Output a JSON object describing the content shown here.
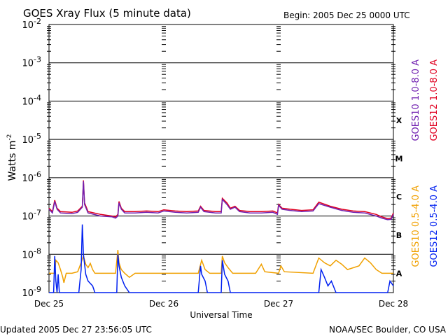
{
  "header": {
    "title": "GOES Xray Flux (5 minute data)",
    "begin": "Begin:  2005 Dec 25 0000 UTC"
  },
  "footer": {
    "updated": "Updated 2005 Dec 27 23:56:05 UTC",
    "source": "NOAA/SEC Boulder, CO USA"
  },
  "chart_data": {
    "type": "line",
    "title": "GOES Xray Flux (5 minute data)",
    "xlabel": "Universal Time",
    "ylabel": "Watts m",
    "ylabel_sup": "-2",
    "yscale": "log",
    "ylim": [
      1e-09,
      0.01
    ],
    "xlim": [
      "Dec 25",
      "Dec 28"
    ],
    "grid": true,
    "yticks": [
      {
        "base": "10",
        "exp": "-2"
      },
      {
        "base": "10",
        "exp": "-3"
      },
      {
        "base": "10",
        "exp": "-4"
      },
      {
        "base": "10",
        "exp": "-5"
      },
      {
        "base": "10",
        "exp": "-6"
      },
      {
        "base": "10",
        "exp": "-7"
      },
      {
        "base": "10",
        "exp": "-8"
      },
      {
        "base": "10",
        "exp": "-9"
      }
    ],
    "xticks": [
      "Dec 25",
      "Dec 26",
      "Dec 27",
      "Dec 28"
    ],
    "flare_classes": [
      "X",
      "M",
      "C",
      "B",
      "A"
    ],
    "series": [
      {
        "name": "GOES12 1.0-8.0 A",
        "color": "#e00020",
        "points": [
          [
            0,
            1.6e-07
          ],
          [
            0.03,
            1.3e-07
          ],
          [
            0.05,
            2.6e-07
          ],
          [
            0.07,
            1.6e-07
          ],
          [
            0.1,
            1.3e-07
          ],
          [
            0.2,
            1.25e-07
          ],
          [
            0.25,
            1.35e-07
          ],
          [
            0.29,
            1.8e-07
          ],
          [
            0.3,
            8.5e-07
          ],
          [
            0.31,
            2.2e-07
          ],
          [
            0.34,
            1.3e-07
          ],
          [
            0.45,
            1.1e-07
          ],
          [
            0.55,
            1e-07
          ],
          [
            0.58,
            9.5e-08
          ],
          [
            0.6,
            1.1e-07
          ],
          [
            0.61,
            2.4e-07
          ],
          [
            0.63,
            1.6e-07
          ],
          [
            0.66,
            1.3e-07
          ],
          [
            0.75,
            1.3e-07
          ],
          [
            0.85,
            1.35e-07
          ],
          [
            0.95,
            1.3e-07
          ],
          [
            1.0,
            1.45e-07
          ],
          [
            1.1,
            1.35e-07
          ],
          [
            1.2,
            1.3e-07
          ],
          [
            1.3,
            1.35e-07
          ],
          [
            1.32,
            1.8e-07
          ],
          [
            1.35,
            1.4e-07
          ],
          [
            1.45,
            1.3e-07
          ],
          [
            1.5,
            1.3e-07
          ],
          [
            1.51,
            2.9e-07
          ],
          [
            1.55,
            2.2e-07
          ],
          [
            1.58,
            1.6e-07
          ],
          [
            1.62,
            1.8e-07
          ],
          [
            1.66,
            1.4e-07
          ],
          [
            1.75,
            1.3e-07
          ],
          [
            1.85,
            1.3e-07
          ],
          [
            1.95,
            1.35e-07
          ],
          [
            1.99,
            1.2e-07
          ],
          [
            2.0,
            2e-07
          ],
          [
            2.03,
            1.6e-07
          ],
          [
            2.1,
            1.5e-07
          ],
          [
            2.2,
            1.4e-07
          ],
          [
            2.3,
            1.45e-07
          ],
          [
            2.35,
            2.3e-07
          ],
          [
            2.45,
            1.8e-07
          ],
          [
            2.55,
            1.5e-07
          ],
          [
            2.65,
            1.35e-07
          ],
          [
            2.75,
            1.3e-07
          ],
          [
            2.85,
            1.1e-07
          ],
          [
            2.9,
            9.5e-08
          ],
          [
            2.95,
            8.5e-08
          ],
          [
            2.98,
            8.8e-08
          ],
          [
            3.0,
            1.2e-07
          ]
        ]
      },
      {
        "name": "GOES10 1.0-8.0 A",
        "color": "#7020b0",
        "points": [
          [
            0,
            1.5e-07
          ],
          [
            0.03,
            1.2e-07
          ],
          [
            0.05,
            2.4e-07
          ],
          [
            0.07,
            1.5e-07
          ],
          [
            0.1,
            1.2e-07
          ],
          [
            0.2,
            1.15e-07
          ],
          [
            0.25,
            1.25e-07
          ],
          [
            0.29,
            1.7e-07
          ],
          [
            0.3,
            8e-07
          ],
          [
            0.31,
            2e-07
          ],
          [
            0.34,
            1.2e-07
          ],
          [
            0.45,
            1e-07
          ],
          [
            0.55,
            9.5e-08
          ],
          [
            0.58,
            8.8e-08
          ],
          [
            0.6,
            1e-07
          ],
          [
            0.61,
            2.2e-07
          ],
          [
            0.63,
            1.5e-07
          ],
          [
            0.66,
            1.2e-07
          ],
          [
            0.75,
            1.2e-07
          ],
          [
            0.85,
            1.25e-07
          ],
          [
            0.95,
            1.2e-07
          ],
          [
            1.0,
            1.35e-07
          ],
          [
            1.1,
            1.25e-07
          ],
          [
            1.2,
            1.2e-07
          ],
          [
            1.3,
            1.25e-07
          ],
          [
            1.32,
            1.7e-07
          ],
          [
            1.35,
            1.3e-07
          ],
          [
            1.45,
            1.2e-07
          ],
          [
            1.5,
            1.2e-07
          ],
          [
            1.51,
            2.7e-07
          ],
          [
            1.55,
            2e-07
          ],
          [
            1.58,
            1.5e-07
          ],
          [
            1.62,
            1.7e-07
          ],
          [
            1.66,
            1.3e-07
          ],
          [
            1.75,
            1.2e-07
          ],
          [
            1.85,
            1.2e-07
          ],
          [
            1.95,
            1.25e-07
          ],
          [
            1.99,
            1.1e-07
          ],
          [
            2.0,
            1.9e-07
          ],
          [
            2.03,
            1.5e-07
          ],
          [
            2.1,
            1.4e-07
          ],
          [
            2.2,
            1.3e-07
          ],
          [
            2.3,
            1.35e-07
          ],
          [
            2.35,
            2.1e-07
          ],
          [
            2.45,
            1.7e-07
          ],
          [
            2.55,
            1.4e-07
          ],
          [
            2.65,
            1.25e-07
          ],
          [
            2.75,
            1.2e-07
          ],
          [
            2.85,
            1e-07
          ],
          [
            2.9,
            8.8e-08
          ],
          [
            2.95,
            8e-08
          ],
          [
            2.98,
            8.2e-08
          ],
          [
            3.0,
            1.1e-07
          ]
        ]
      },
      {
        "name": "GOES10 0.5-4.0 A",
        "color": "#f0a000",
        "points": [
          [
            0,
            3.2e-09
          ],
          [
            0.05,
            3.2e-09
          ],
          [
            0.06,
            7e-09
          ],
          [
            0.08,
            6e-09
          ],
          [
            0.1,
            4e-09
          ],
          [
            0.12,
            2.5e-09
          ],
          [
            0.13,
            1.8e-09
          ],
          [
            0.15,
            3.2e-09
          ],
          [
            0.2,
            3.2e-09
          ],
          [
            0.25,
            3.5e-09
          ],
          [
            0.28,
            6e-09
          ],
          [
            0.3,
            9e-09
          ],
          [
            0.32,
            5.5e-09
          ],
          [
            0.34,
            4.5e-09
          ],
          [
            0.36,
            5.8e-09
          ],
          [
            0.38,
            4e-09
          ],
          [
            0.4,
            3.2e-09
          ],
          [
            0.5,
            3.2e-09
          ],
          [
            0.58,
            3.2e-09
          ],
          [
            0.6,
            1.3e-08
          ],
          [
            0.61,
            6e-09
          ],
          [
            0.63,
            4e-09
          ],
          [
            0.66,
            3.2e-09
          ],
          [
            0.7,
            2.5e-09
          ],
          [
            0.75,
            3.2e-09
          ],
          [
            1.0,
            3.2e-09
          ],
          [
            1.3,
            3.2e-09
          ],
          [
            1.33,
            7e-09
          ],
          [
            1.36,
            4e-09
          ],
          [
            1.4,
            3.2e-09
          ],
          [
            1.5,
            3.2e-09
          ],
          [
            1.51,
            9e-09
          ],
          [
            1.53,
            6e-09
          ],
          [
            1.56,
            4.5e-09
          ],
          [
            1.6,
            3.2e-09
          ],
          [
            1.8,
            3.2e-09
          ],
          [
            1.85,
            5.5e-09
          ],
          [
            1.88,
            3.5e-09
          ],
          [
            2.0,
            3.2e-09
          ],
          [
            2.02,
            5e-09
          ],
          [
            2.05,
            3.5e-09
          ],
          [
            2.3,
            3.2e-09
          ],
          [
            2.35,
            8e-09
          ],
          [
            2.4,
            6e-09
          ],
          [
            2.45,
            5e-09
          ],
          [
            2.5,
            7e-09
          ],
          [
            2.55,
            5.5e-09
          ],
          [
            2.6,
            4e-09
          ],
          [
            2.7,
            5e-09
          ],
          [
            2.75,
            8e-09
          ],
          [
            2.8,
            6e-09
          ],
          [
            2.85,
            4e-09
          ],
          [
            2.9,
            3.2e-09
          ],
          [
            3.0,
            3.2e-09
          ]
        ]
      },
      {
        "name": "GOES12 0.5-4.0 A",
        "color": "#0020f0",
        "points": [
          [
            0,
            1e-09
          ],
          [
            0.04,
            1e-09
          ],
          [
            0.05,
            9e-09
          ],
          [
            0.06,
            2e-09
          ],
          [
            0.07,
            1e-09
          ],
          [
            0.08,
            3e-09
          ],
          [
            0.09,
            1e-09
          ],
          [
            0.26,
            1e-09
          ],
          [
            0.28,
            4e-09
          ],
          [
            0.29,
            6e-08
          ],
          [
            0.3,
            1e-08
          ],
          [
            0.32,
            3e-09
          ],
          [
            0.34,
            2e-09
          ],
          [
            0.38,
            1.5e-09
          ],
          [
            0.4,
            1e-09
          ],
          [
            0.59,
            1e-09
          ],
          [
            0.6,
            1e-08
          ],
          [
            0.61,
            5e-09
          ],
          [
            0.63,
            2.5e-09
          ],
          [
            0.66,
            1.5e-09
          ],
          [
            0.7,
            1e-09
          ],
          [
            1.3,
            1e-09
          ],
          [
            1.32,
            5e-09
          ],
          [
            1.33,
            3e-09
          ],
          [
            1.36,
            2e-09
          ],
          [
            1.38,
            1e-09
          ],
          [
            1.5,
            1e-09
          ],
          [
            1.51,
            7e-09
          ],
          [
            1.53,
            3e-09
          ],
          [
            1.56,
            2e-09
          ],
          [
            1.58,
            1e-09
          ],
          [
            2.35,
            1e-09
          ],
          [
            2.37,
            4e-09
          ],
          [
            2.4,
            2.5e-09
          ],
          [
            2.43,
            1.5e-09
          ],
          [
            2.46,
            2e-09
          ],
          [
            2.5,
            1e-09
          ],
          [
            2.95,
            1e-09
          ],
          [
            2.97,
            2e-09
          ],
          [
            3.0,
            1.5e-09
          ]
        ]
      }
    ]
  }
}
